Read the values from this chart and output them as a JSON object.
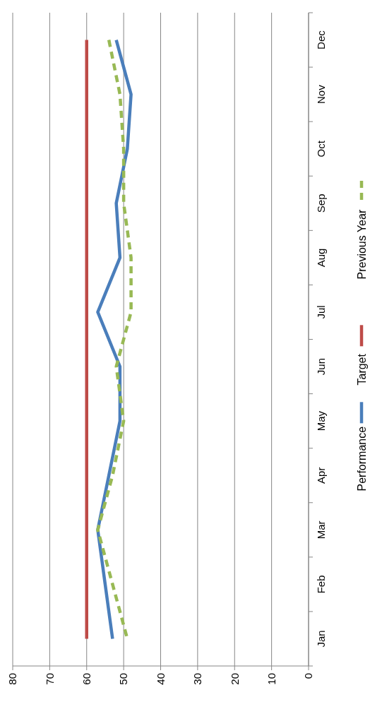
{
  "chart_data": {
    "type": "line",
    "orientation": "horizontal",
    "categories": [
      "Dec",
      "Nov",
      "Oct",
      "Sep",
      "Aug",
      "Jul",
      "Jun",
      "May",
      "Apr",
      "Mar",
      "Feb",
      "Jan"
    ],
    "series": [
      {
        "name": "Performance",
        "color": "#4a7ebb",
        "values": [
          52,
          48,
          49,
          52,
          51,
          57,
          51,
          51,
          54,
          57,
          55,
          53
        ]
      },
      {
        "name": "Target",
        "color": "#be4b48",
        "values": [
          60,
          60,
          60,
          60,
          60,
          60,
          60,
          60,
          60,
          60,
          60,
          60
        ]
      },
      {
        "name": "Previous Year",
        "color": "#98b954",
        "line_style": "dashed",
        "values": [
          54,
          51,
          50,
          50,
          48,
          48,
          52,
          50,
          53,
          57,
          53,
          49
        ]
      }
    ],
    "xlim": [
      80,
      0
    ],
    "xticks": [
      80,
      70,
      60,
      50,
      40,
      30,
      20,
      10,
      0
    ],
    "grid": "x",
    "legend": "right",
    "marker": "none"
  }
}
